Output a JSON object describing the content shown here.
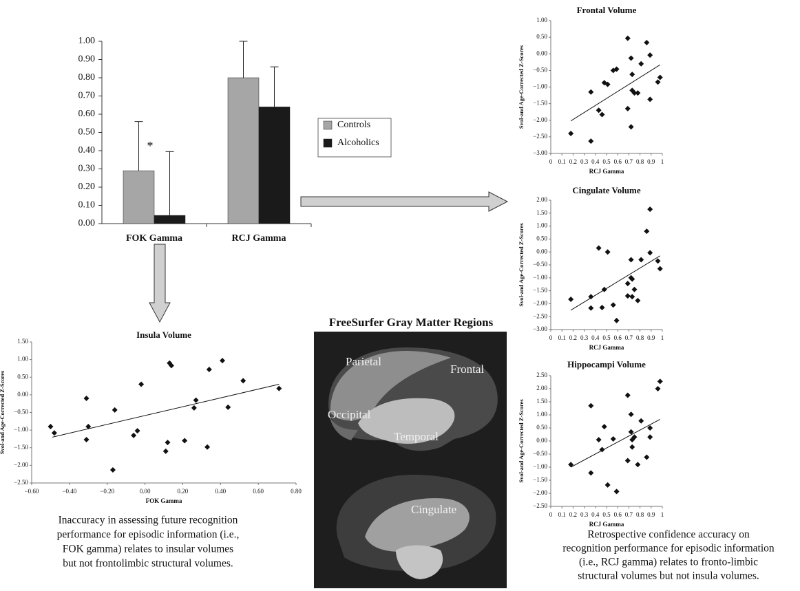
{
  "chart_data": [
    {
      "type": "bar",
      "categories": [
        "FOK Gamma",
        "RCJ Gamma"
      ],
      "series": [
        {
          "name": "Controls",
          "color": "#a6a6a6",
          "values": [
            0.29,
            0.8
          ],
          "errors": [
            0.27,
            0.2
          ]
        },
        {
          "name": "Alcoholics",
          "color": "#1a1a1a",
          "values": [
            0.045,
            0.64
          ],
          "errors": [
            0.35,
            0.22
          ]
        }
      ],
      "ylim": [
        0,
        1
      ],
      "yticks": [
        {
          "value": 0,
          "label": "0.00"
        },
        {
          "value": 0.1,
          "label": "0.10"
        },
        {
          "value": 0.2,
          "label": "0.20"
        },
        {
          "value": 0.3,
          "label": "0.30"
        },
        {
          "value": 0.4,
          "label": "0.40"
        },
        {
          "value": 0.5,
          "label": "0.50"
        },
        {
          "value": 0.6,
          "label": "0.60"
        },
        {
          "value": 0.7,
          "label": "0.70"
        },
        {
          "value": 0.8,
          "label": "0.80"
        },
        {
          "value": 0.9,
          "label": "0.90"
        },
        {
          "value": 1,
          "label": "1.00"
        }
      ],
      "annotation": "*",
      "legend": "right"
    },
    {
      "type": "scatter",
      "title": "Insula Volume",
      "x_label": "FOK Gamma",
      "y_label": "Svol-and Age-Corrected Z-Scores",
      "color": "#111111",
      "x": [
        -0.5,
        -0.48,
        -0.31,
        -0.31,
        -0.3,
        -0.17,
        -0.16,
        -0.06,
        -0.04,
        -0.02,
        0.11,
        0.12,
        0.13,
        0.14,
        0.21,
        0.26,
        0.27,
        0.33,
        0.34,
        0.41,
        0.44,
        0.52,
        0.71
      ],
      "values": [
        -0.9,
        -1.08,
        -0.1,
        -1.27,
        -0.9,
        -2.13,
        -0.43,
        -1.15,
        -1.02,
        0.3,
        -1.6,
        -1.35,
        0.9,
        0.83,
        -1.3,
        -0.37,
        -0.15,
        -1.48,
        0.72,
        0.97,
        -0.35,
        0.4,
        0.18
      ],
      "trend": {
        "x": [
          -0.49,
          0.71
        ],
        "values": [
          -1.2,
          0.3
        ]
      },
      "xlim": [
        -0.6,
        0.8
      ],
      "xticks": [
        {
          "value": -0.6,
          "label": "−0.60"
        },
        {
          "value": -0.4,
          "label": "−0.40"
        },
        {
          "value": -0.2,
          "label": "−0.20"
        },
        {
          "value": 0,
          "label": "0.00"
        },
        {
          "value": 0.2,
          "label": "0.20"
        },
        {
          "value": 0.4,
          "label": "0.40"
        },
        {
          "value": 0.6,
          "label": "0.60"
        },
        {
          "value": 0.8,
          "label": "0.80"
        }
      ],
      "ylim": [
        -2.5,
        1.5
      ],
      "yticks": [
        {
          "value": 1.5,
          "label": "1.50"
        },
        {
          "value": 1,
          "label": "1.00"
        },
        {
          "value": 0.5,
          "label": "0.50"
        },
        {
          "value": 0,
          "label": "0.00"
        },
        {
          "value": -0.5,
          "label": "−0.50"
        },
        {
          "value": -1,
          "label": "−1.00"
        },
        {
          "value": -1.5,
          "label": "−1.50"
        },
        {
          "value": -2,
          "label": "−2.00"
        },
        {
          "value": -2.5,
          "label": "−2.50"
        }
      ]
    },
    {
      "type": "scatter",
      "title": "Frontal Volume",
      "x_label": "RCJ Gamma",
      "y_label": "Svol-and Age-Corrected Z-Scores",
      "color": "#111111",
      "x": [
        0.18,
        0.36,
        0.36,
        0.43,
        0.46,
        0.48,
        0.51,
        0.56,
        0.59,
        0.69,
        0.69,
        0.72,
        0.72,
        0.73,
        0.73,
        0.75,
        0.78,
        0.81,
        0.86,
        0.89,
        0.89,
        0.96,
        0.98
      ],
      "values": [
        -2.4,
        -1.15,
        -2.63,
        -1.7,
        -1.83,
        -0.87,
        -0.92,
        -0.5,
        -0.46,
        0.47,
        -1.65,
        -0.13,
        -2.2,
        -0.62,
        -1.1,
        -1.18,
        -1.18,
        -0.3,
        0.34,
        -0.04,
        -1.37,
        -0.85,
        -0.71
      ],
      "trend": {
        "x": [
          0.18,
          0.98
        ],
        "values": [
          -2.02,
          -0.33
        ]
      },
      "xlim": [
        0,
        1
      ],
      "xticks": [
        0,
        0.1,
        0.2,
        0.3,
        0.4,
        0.5,
        0.6,
        0.7,
        0.8,
        0.9,
        1
      ],
      "ylim": [
        -3,
        1
      ],
      "yticks": [
        {
          "value": 1,
          "label": "1.00"
        },
        {
          "value": 0.5,
          "label": "0.50"
        },
        {
          "value": 0,
          "label": "0.00"
        },
        {
          "value": -0.5,
          "label": "−0.50"
        },
        {
          "value": -1,
          "label": "−1.00"
        },
        {
          "value": -1.5,
          "label": "−1.50"
        },
        {
          "value": -2,
          "label": "−2.00"
        },
        {
          "value": -2.5,
          "label": "−2.50"
        },
        {
          "value": -3,
          "label": "−3.00"
        }
      ]
    },
    {
      "type": "scatter",
      "title": "Cingulate Volume",
      "x_label": "RCJ Gamma",
      "y_label": "Svol-and Age-Corrected Z-Scores",
      "color": "#111111",
      "x": [
        0.18,
        0.36,
        0.36,
        0.43,
        0.46,
        0.48,
        0.51,
        0.56,
        0.59,
        0.69,
        0.69,
        0.72,
        0.72,
        0.73,
        0.73,
        0.75,
        0.78,
        0.81,
        0.86,
        0.89,
        0.89,
        0.96,
        0.98
      ],
      "values": [
        -1.83,
        -1.73,
        -2.17,
        0.15,
        -2.15,
        -1.45,
        0.0,
        -2.05,
        -2.65,
        -1.22,
        -1.7,
        -0.3,
        -1.0,
        -1.05,
        -1.73,
        -1.45,
        -1.88,
        -0.3,
        0.8,
        1.65,
        -0.03,
        -0.35,
        -0.65
      ],
      "trend": {
        "x": [
          0.18,
          0.98
        ],
        "values": [
          -2.25,
          -0.15
        ]
      },
      "xlim": [
        0,
        1
      ],
      "xticks": [
        0,
        0.1,
        0.2,
        0.3,
        0.4,
        0.5,
        0.6,
        0.7,
        0.8,
        0.9,
        1
      ],
      "ylim": [
        -3,
        2
      ],
      "yticks": [
        {
          "value": 2,
          "label": "2.00"
        },
        {
          "value": 1.5,
          "label": "1.50"
        },
        {
          "value": 1,
          "label": "1.00"
        },
        {
          "value": 0.5,
          "label": "0.50"
        },
        {
          "value": 0,
          "label": "0.00"
        },
        {
          "value": -0.5,
          "label": "−0.50"
        },
        {
          "value": -1,
          "label": "−1.00"
        },
        {
          "value": -1.5,
          "label": "−1.50"
        },
        {
          "value": -2,
          "label": "−2.00"
        },
        {
          "value": -2.5,
          "label": "−2.50"
        },
        {
          "value": -3,
          "label": "−3.00"
        }
      ]
    },
    {
      "type": "scatter",
      "title": "Hippocampi Volume",
      "x_label": "RCJ Gamma",
      "y_label": "Svol-and Age-Corrected Z-Scores",
      "color": "#111111",
      "x": [
        0.18,
        0.36,
        0.36,
        0.43,
        0.46,
        0.48,
        0.51,
        0.56,
        0.59,
        0.69,
        0.69,
        0.72,
        0.72,
        0.73,
        0.73,
        0.75,
        0.78,
        0.81,
        0.86,
        0.89,
        0.89,
        0.96,
        0.98
      ],
      "values": [
        -0.9,
        1.35,
        -1.22,
        0.05,
        -0.33,
        0.55,
        -1.68,
        0.08,
        -1.93,
        1.75,
        -0.75,
        1.02,
        0.35,
        0.05,
        -0.23,
        0.15,
        -0.9,
        0.77,
        -0.62,
        0.5,
        0.15,
        2.0,
        2.28
      ],
      "trend": {
        "x": [
          0.18,
          0.98
        ],
        "values": [
          -1.0,
          0.83
        ]
      },
      "xlim": [
        0,
        1
      ],
      "xticks": [
        0,
        0.1,
        0.2,
        0.3,
        0.4,
        0.5,
        0.6,
        0.7,
        0.8,
        0.9,
        1
      ],
      "ylim": [
        -2.5,
        2.5
      ],
      "yticks": [
        {
          "value": 2.5,
          "label": "2.50"
        },
        {
          "value": 2,
          "label": "2.00"
        },
        {
          "value": 1.5,
          "label": "1.50"
        },
        {
          "value": 1,
          "label": "1.00"
        },
        {
          "value": 0.5,
          "label": "0.50"
        },
        {
          "value": 0,
          "label": "0.00"
        },
        {
          "value": -0.5,
          "label": "−0.50"
        },
        {
          "value": -1,
          "label": "−1.00"
        },
        {
          "value": -1.5,
          "label": "−1.50"
        },
        {
          "value": -2,
          "label": "−2.00"
        },
        {
          "value": -2.5,
          "label": "−2.50"
        }
      ]
    }
  ],
  "figure": {
    "brain_title": "FreeSurfer Gray Matter Regions",
    "regions": [
      "Parietal",
      "Frontal",
      "Occipital",
      "Temporal",
      "Cingulate"
    ],
    "captions": {
      "left": [
        "Inaccuracy in assessing future recognition",
        "performance for episodic information (i.e.,",
        "FOK gamma) relates to insular volumes",
        "but not frontolimbic structural volumes."
      ],
      "right": [
        "Retrospective confidence accuracy on",
        "recognition performance for episodic information",
        "(i.e., RCJ gamma) relates to fronto-limbic",
        "structural volumes but not insula volumes."
      ]
    }
  }
}
